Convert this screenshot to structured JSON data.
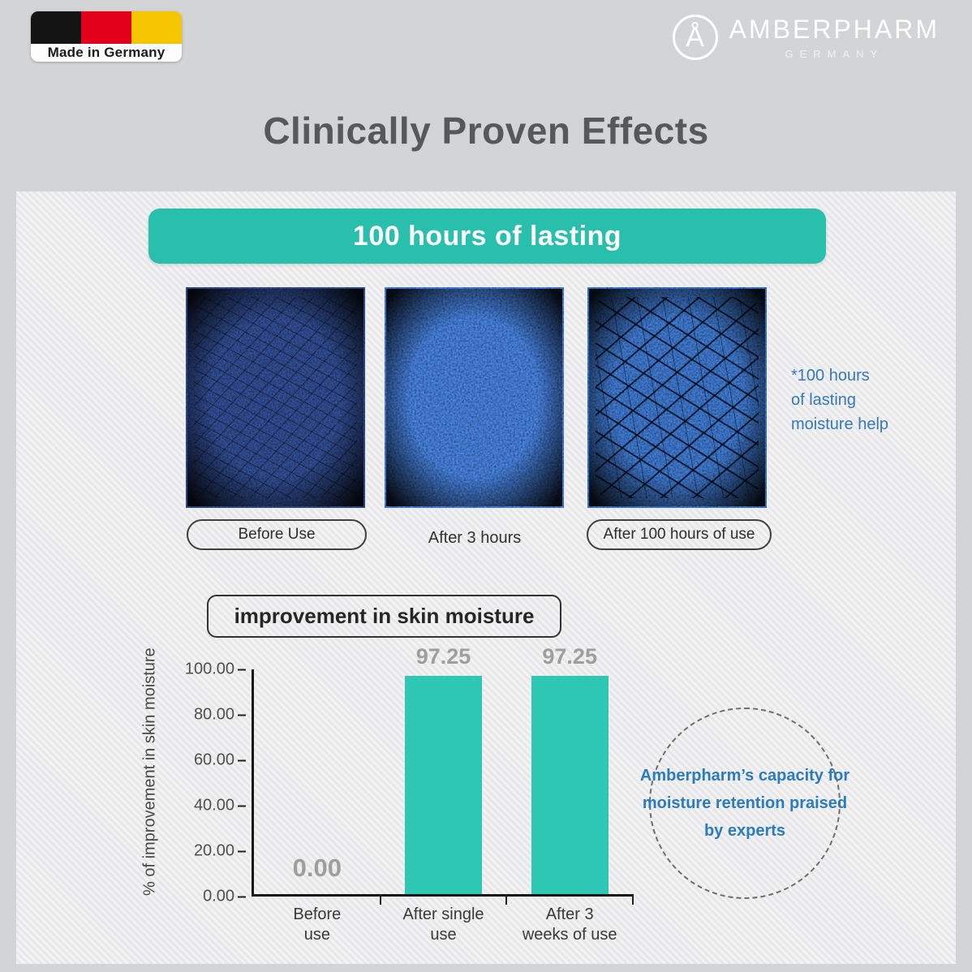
{
  "header": {
    "made_in_germany": "Made in Germany",
    "brand_monogram": "Å",
    "brand_name": "AMBERPHARM",
    "brand_sub": "GERMANY"
  },
  "title": "Clinically Proven Effects",
  "panel": {
    "banner": "100 hours of lasting",
    "samples": [
      {
        "label": "Before Use"
      },
      {
        "label": "After 3 hours"
      },
      {
        "label": "After 100 hours of use"
      }
    ],
    "side_note_lines": [
      "*100 hours",
      "of lasting",
      "moisture help"
    ],
    "chart_title": "improvement in skin moisture",
    "expert_note_lines": [
      "Amberpharm’s capacity for",
      "moisture retention praised",
      "by experts"
    ]
  },
  "chart_data": {
    "type": "bar",
    "title": "improvement in skin moisture",
    "categories": [
      "Before use",
      "After single use",
      "After 3 weeks of use"
    ],
    "tick_label_lines": [
      [
        "Before",
        "use"
      ],
      [
        "After single",
        "use"
      ],
      [
        "After 3",
        "weeks of use"
      ]
    ],
    "values": [
      0.0,
      97.25,
      97.25
    ],
    "value_labels": [
      "0.00",
      "97.25",
      "97.25"
    ],
    "xlabel": "",
    "ylabel": "% of improvement in skin moisture",
    "ylim": [
      0,
      100
    ],
    "yticks": [
      "100.00",
      "80.00",
      "60.00",
      "40.00",
      "20.00",
      "0.00"
    ],
    "bar_color": "#2ec7b4",
    "grid": false,
    "legend": null
  },
  "colors": {
    "teal_banner": "#29bfad",
    "bar_teal": "#2ec7b4",
    "blue_text": "#3579b8",
    "title_gray": "#57585b",
    "value_gray": "#9e9e9e",
    "background_gray": "#d3d4d5"
  }
}
